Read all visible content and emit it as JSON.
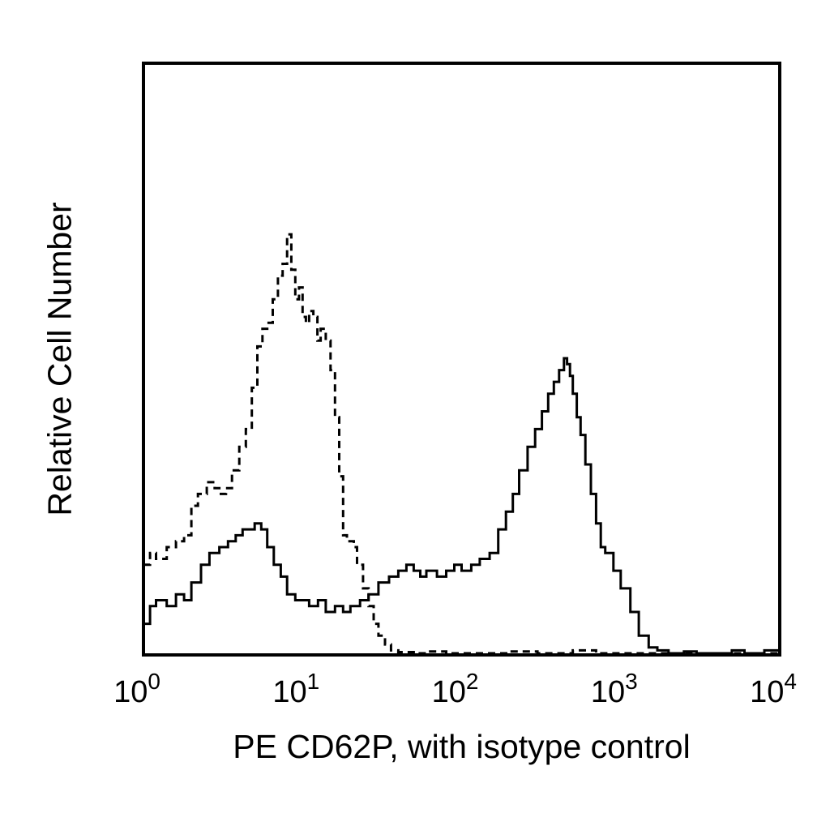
{
  "chart_data": {
    "type": "line",
    "title": "",
    "xlabel": "PE CD62P, with isotype control",
    "ylabel": "Relative Cell Number",
    "x_scale": "log",
    "xlim": [
      1,
      10000
    ],
    "ylim": [
      0,
      100
    ],
    "grid": false,
    "legend": "none",
    "x_ticks": [
      {
        "value": 1,
        "base": "10",
        "exp": "0"
      },
      {
        "value": 10,
        "base": "10",
        "exp": "1"
      },
      {
        "value": 100,
        "base": "10",
        "exp": "2"
      },
      {
        "value": 1000,
        "base": "10",
        "exp": "3"
      },
      {
        "value": 10000,
        "base": "10",
        "exp": "4"
      }
    ],
    "series": [
      {
        "style": "solid",
        "color": "#000000",
        "x": [
          1.0,
          1.1,
          1.2,
          1.4,
          1.6,
          1.8,
          2.0,
          2.3,
          2.6,
          3.0,
          3.4,
          3.8,
          4.2,
          4.6,
          5.0,
          5.5,
          6.0,
          6.6,
          7.3,
          8.0,
          9.0,
          10,
          11,
          12.5,
          14,
          16,
          18,
          20,
          23,
          26,
          30,
          35,
          40,
          45,
          50,
          55,
          60,
          70,
          80,
          90,
          100,
          115,
          130,
          150,
          170,
          190,
          210,
          230,
          260,
          290,
          320,
          350,
          380,
          410,
          440,
          460,
          480,
          500,
          530,
          560,
          600,
          650,
          700,
          750,
          800,
          900,
          1000,
          1150,
          1300,
          1500,
          1700,
          2000,
          2500,
          3000,
          4000,
          5000,
          6000,
          7000,
          8000,
          10000
        ],
        "y": [
          5,
          8,
          9,
          8,
          10,
          9,
          12,
          15,
          17,
          18,
          19,
          20,
          21,
          21,
          22,
          21,
          18,
          15,
          13,
          10,
          9,
          9,
          8,
          9,
          7,
          8,
          7,
          8,
          9,
          10,
          12,
          13,
          14,
          15,
          14,
          13,
          14,
          13,
          14,
          15,
          14,
          15,
          16,
          17,
          21,
          24,
          27,
          31,
          35,
          38,
          41,
          44,
          46,
          48,
          50,
          49,
          47,
          44,
          40,
          37,
          32,
          27,
          22,
          18,
          17,
          14,
          11,
          7,
          3,
          1,
          0.5,
          0,
          0.3,
          0,
          0,
          0.5,
          0,
          0,
          0.5,
          0
        ]
      },
      {
        "style": "dashed",
        "color": "#000000",
        "x": [
          1.0,
          1.1,
          1.2,
          1.4,
          1.6,
          1.8,
          2.0,
          2.2,
          2.5,
          2.8,
          3.0,
          3.3,
          3.6,
          4.0,
          4.4,
          4.8,
          5.2,
          5.6,
          6.0,
          6.5,
          7.0,
          7.5,
          8.0,
          8.5,
          9.0,
          9.5,
          10,
          10.5,
          11,
          11.7,
          12.4,
          13,
          14,
          15,
          16,
          17,
          18,
          19,
          20,
          21,
          22,
          24,
          26,
          28,
          30,
          33,
          36,
          40,
          50,
          60,
          80,
          100,
          150,
          200,
          300,
          500,
          700,
          1000,
          2000,
          5000,
          10000
        ],
        "y": [
          15,
          17,
          16,
          18,
          19,
          20,
          25,
          27,
          29,
          28,
          27,
          28,
          31,
          35,
          38,
          45,
          52,
          55,
          56,
          60,
          64,
          66,
          71,
          65,
          60,
          62,
          57,
          56,
          58,
          57,
          53,
          55,
          53,
          48,
          40,
          30,
          20,
          19,
          19,
          18,
          15,
          11,
          8,
          5,
          3,
          1.5,
          0.5,
          0.2,
          0,
          0.3,
          0,
          0,
          0,
          0.3,
          0,
          0.5,
          0,
          0,
          0,
          0,
          0
        ]
      }
    ]
  }
}
